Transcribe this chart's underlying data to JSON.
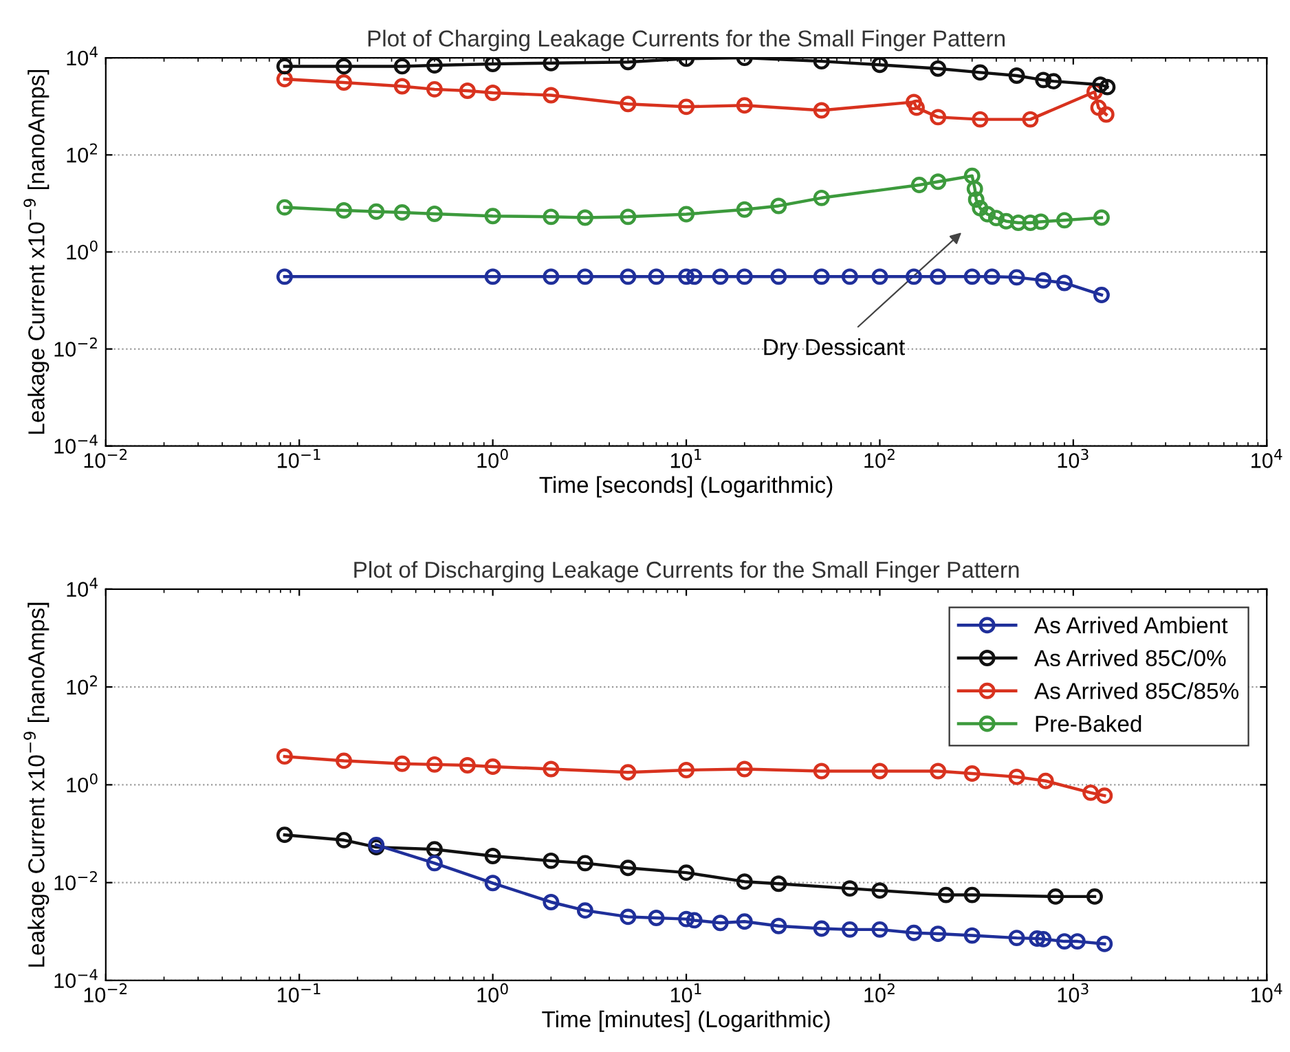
{
  "chart_data": [
    {
      "type": "line",
      "title": "Plot of Charging Leakage Currents for the Small Finger Pattern",
      "xlabel": "Time [seconds] (Logarithmic)",
      "ylabel": "Leakage Current x10$^{−9}$ [nanoAmps]",
      "log": "xy",
      "grid": "y",
      "marker": "circle",
      "line_style": "solid",
      "xlim": [
        0.01,
        10000
      ],
      "ylim": [
        0.0001,
        10000
      ],
      "xticks": [
        {
          "value": 0.01,
          "label": "10$^{−2}$"
        },
        {
          "value": 0.1,
          "label": "10$^{−1}$"
        },
        {
          "value": 1,
          "label": "10$^{0}$"
        },
        {
          "value": 10,
          "label": "10$^{1}$"
        },
        {
          "value": 100,
          "label": "10$^{2}$"
        },
        {
          "value": 1000,
          "label": "10$^{3}$"
        },
        {
          "value": 10000,
          "label": "10$^{4}$"
        }
      ],
      "yticks": [
        {
          "value": 0.0001,
          "label": "10$^{−4}$"
        },
        {
          "value": 0.01,
          "label": "10$^{−2}$"
        },
        {
          "value": 1,
          "label": "10$^{0}$"
        },
        {
          "value": 100,
          "label": "10$^{2}$"
        },
        {
          "value": 10000,
          "label": "10$^{4}$"
        }
      ],
      "annotations": [
        "Dry Dessicant"
      ],
      "series": [
        {
          "color": "#1f2f9a",
          "x": [
            0.084,
            1,
            2,
            3,
            5,
            7,
            10,
            11,
            15,
            20,
            30,
            50,
            70,
            100,
            150,
            200,
            300,
            380,
            510,
            700,
            900,
            1400
          ],
          "values": [
            0.31,
            0.31,
            0.31,
            0.31,
            0.31,
            0.31,
            0.31,
            0.31,
            0.31,
            0.31,
            0.31,
            0.31,
            0.31,
            0.31,
            0.31,
            0.31,
            0.31,
            0.31,
            0.3,
            0.26,
            0.23,
            0.13
          ]
        },
        {
          "color": "#111111",
          "x": [
            0.084,
            0.17,
            0.34,
            0.5,
            1,
            2,
            5,
            10,
            20,
            50,
            100,
            200,
            330,
            510,
            700,
            790,
            1380,
            1500
          ],
          "values": [
            6700,
            6700,
            6700,
            7000,
            7500,
            7800,
            8200,
            9600,
            10000,
            8500,
            7200,
            6000,
            5000,
            4300,
            3500,
            3300,
            2800,
            2500
          ]
        },
        {
          "color": "#d8321e",
          "x": [
            0.084,
            0.17,
            0.34,
            0.5,
            0.74,
            1,
            2,
            5,
            10,
            20,
            50,
            150,
            155,
            200,
            330,
            600,
            1290,
            1350,
            1480
          ],
          "values": [
            3650,
            3100,
            2600,
            2250,
            2100,
            1900,
            1700,
            1120,
            980,
            1050,
            830,
            1230,
            940,
            600,
            540,
            540,
            2000,
            940,
            680
          ]
        },
        {
          "color": "#3c9a3c",
          "x": [
            0.084,
            0.17,
            0.25,
            0.34,
            0.5,
            1,
            2,
            3,
            5,
            10,
            20,
            30,
            50,
            160,
            200,
            300,
            310,
            315,
            330,
            360,
            400,
            450,
            520,
            600,
            680,
            900,
            1400
          ],
          "values": [
            8.3,
            7.2,
            6.8,
            6.5,
            6.1,
            5.5,
            5.3,
            5.1,
            5.3,
            6.0,
            7.5,
            8.9,
            13,
            24,
            28,
            37,
            20,
            12,
            8,
            6,
            5,
            4.3,
            4.0,
            4.0,
            4.2,
            4.5,
            5.1
          ]
        }
      ]
    },
    {
      "type": "line",
      "title": "Plot of Discharging Leakage Currents for the Small Finger Pattern",
      "xlabel": "Time [minutes] (Logarithmic)",
      "ylabel": "Leakage Current x10$^{−9}$ [nanoAmps]",
      "log": "xy",
      "grid": "y",
      "marker": "circle",
      "line_style": "solid",
      "legend": "top right",
      "xlim": [
        0.01,
        10000
      ],
      "ylim": [
        0.0001,
        10000
      ],
      "xticks": [
        {
          "value": 0.01,
          "label": "10$^{−2}$"
        },
        {
          "value": 0.1,
          "label": "10$^{−1}$"
        },
        {
          "value": 1,
          "label": "10$^{0}$"
        },
        {
          "value": 10,
          "label": "10$^{1}$"
        },
        {
          "value": 100,
          "label": "10$^{2}$"
        },
        {
          "value": 1000,
          "label": "10$^{3}$"
        },
        {
          "value": 10000,
          "label": "10$^{4}$"
        }
      ],
      "yticks": [
        {
          "value": 0.0001,
          "label": "10$^{−4}$"
        },
        {
          "value": 0.01,
          "label": "10$^{−2}$"
        },
        {
          "value": 1,
          "label": "10$^{0}$"
        },
        {
          "value": 100,
          "label": "10$^{2}$"
        },
        {
          "value": 10000,
          "label": "10$^{4}$"
        }
      ],
      "series": [
        {
          "name": "As Arrived Ambient",
          "color": "#1f2f9a",
          "x": [
            0.25,
            0.5,
            1,
            2,
            3,
            5,
            7,
            10,
            11,
            15,
            20,
            30,
            50,
            70,
            100,
            150,
            200,
            300,
            510,
            650,
            700,
            900,
            1050,
            1450
          ],
          "values": [
            0.059,
            0.025,
            0.0098,
            0.004,
            0.0027,
            0.002,
            0.0019,
            0.0018,
            0.0017,
            0.0015,
            0.0016,
            0.0013,
            0.00115,
            0.0011,
            0.0011,
            0.00094,
            0.0009,
            0.00083,
            0.00074,
            0.00072,
            0.0007,
            0.00063,
            0.00063,
            0.00056
          ]
        },
        {
          "name": "As Arrived 85C/0%",
          "color": "#111111",
          "x": [
            0.084,
            0.17,
            0.25,
            0.5,
            1,
            2,
            3,
            5,
            10,
            20,
            30,
            70,
            100,
            220,
            300,
            810,
            1290
          ],
          "values": [
            0.095,
            0.074,
            0.053,
            0.048,
            0.035,
            0.028,
            0.025,
            0.02,
            0.016,
            0.0105,
            0.0095,
            0.0076,
            0.0069,
            0.0056,
            0.0056,
            0.0052,
            0.0052
          ]
        },
        {
          "name": "As Arrived 85C/85%",
          "color": "#d8321e",
          "x": [
            0.084,
            0.17,
            0.34,
            0.5,
            0.74,
            1,
            2,
            5,
            10,
            20,
            50,
            100,
            200,
            300,
            510,
            720,
            1230,
            1450
          ],
          "values": [
            3.8,
            3.1,
            2.7,
            2.6,
            2.5,
            2.35,
            2.1,
            1.8,
            2.0,
            2.1,
            1.9,
            1.9,
            1.9,
            1.7,
            1.45,
            1.2,
            0.69,
            0.6
          ]
        },
        {
          "name": "Pre-Baked",
          "color": "#3c9a3c"
        }
      ]
    }
  ]
}
